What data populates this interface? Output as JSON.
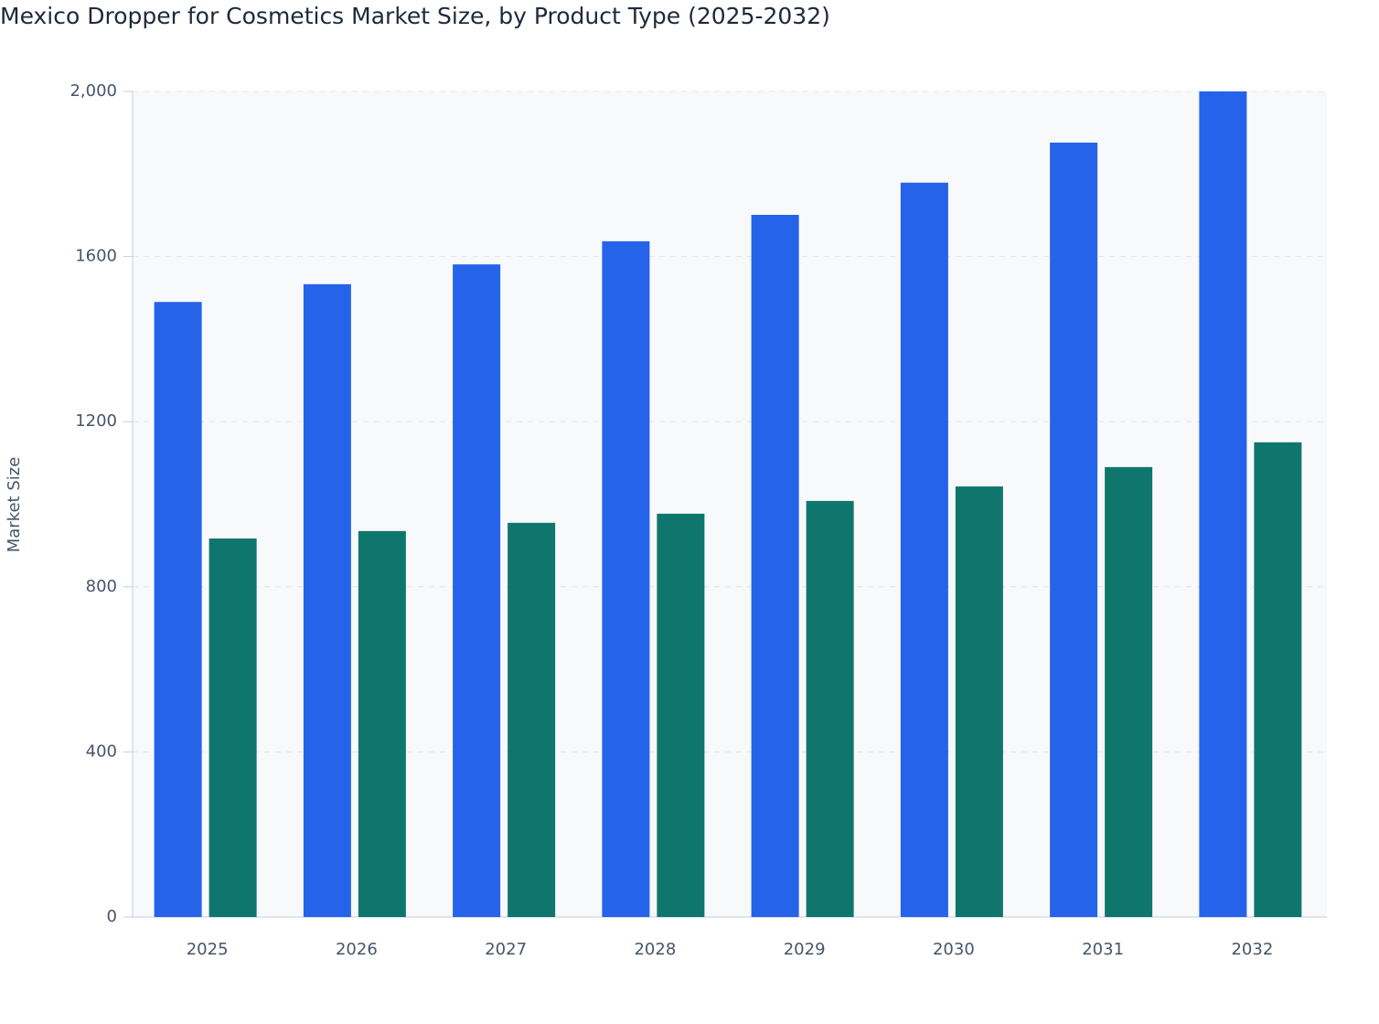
{
  "chart_data": {
    "type": "bar",
    "title": "Mexico Dropper for Cosmetics Market Size, by Product Type (2025-2032)",
    "y_label": "Market Size",
    "categories": [
      "2025",
      "2026",
      "2027",
      "2028",
      "2029",
      "2030",
      "2031",
      "2032"
    ],
    "series": [
      {
        "color": "#2563eb",
        "values": [
          1490,
          1533,
          1581,
          1637,
          1701,
          1779,
          1876,
          2000
        ]
      },
      {
        "color": "#0f766e",
        "values": [
          917,
          935,
          955,
          977,
          1008,
          1043,
          1090,
          1150
        ]
      }
    ],
    "ylim": [
      0,
      2000
    ],
    "yticks": [
      0,
      400,
      800,
      1200,
      1600,
      {
        "value": 2000,
        "label": "2,000"
      }
    ],
    "grid": true
  }
}
